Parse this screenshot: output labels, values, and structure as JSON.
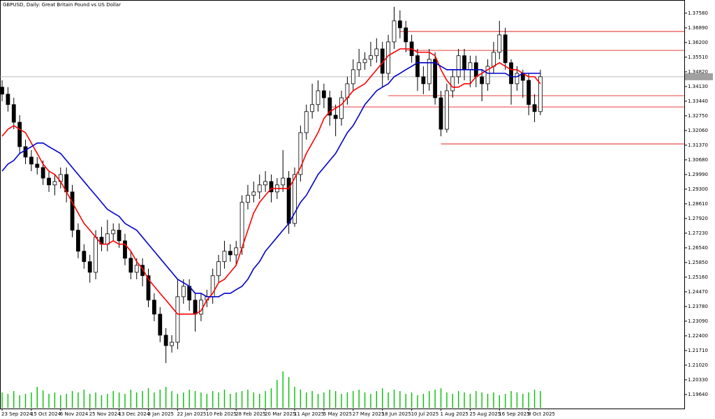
{
  "chart_data": {
    "type": "candlestick",
    "title": "GBPUSD, Daily:  Great Britain Pound vs US Dollar",
    "categories": [
      "23 Sep 2024",
      null,
      null,
      null,
      null,
      "15 Oct 2024",
      null,
      null,
      null,
      null,
      "6 Nov 2024",
      null,
      null,
      null,
      null,
      "25 Nov 2024",
      null,
      null,
      null,
      null,
      "13 Dec 2024",
      null,
      null,
      null,
      null,
      "3 Jan 2025",
      null,
      null,
      null,
      null,
      "22 Jan 2025",
      null,
      null,
      null,
      null,
      "10 Feb 2025",
      null,
      null,
      null,
      null,
      "28 Feb 2025",
      null,
      null,
      null,
      null,
      "20 Mar 2025",
      null,
      null,
      null,
      null,
      "11 Apr 2025",
      null,
      null,
      null,
      null,
      "5 May 2025",
      null,
      null,
      null,
      null,
      "27 May 2025",
      null,
      null,
      null,
      null,
      "18 Jun 2025",
      null,
      null,
      null,
      null,
      "10 Jul 2025",
      null,
      null,
      null,
      null,
      "1 Aug 2025",
      null,
      null,
      null,
      null,
      "25 Aug 2025",
      null,
      null,
      null,
      null,
      "16 Sep 2025",
      null,
      null,
      null,
      null,
      "8 Oct 2025",
      null,
      null
    ],
    "open": [
      1.341,
      1.3377,
      1.3328,
      1.3245,
      1.313,
      1.3081,
      1.3048,
      1.3032,
      1.2982,
      1.295,
      1.2966,
      1.2999,
      1.2917,
      1.2737,
      1.2638,
      1.2589,
      1.2539,
      1.2704,
      1.2671,
      1.272,
      1.2737,
      1.2687,
      1.2605,
      1.2539,
      1.2572,
      1.2523,
      1.2408,
      1.2342,
      1.2243,
      1.2194,
      1.221,
      1.2424,
      1.2473,
      1.2408,
      1.2342,
      1.2408,
      1.2424,
      1.2523,
      1.2589,
      1.2638,
      1.2621,
      1.2654,
      1.2868,
      1.2901,
      1.2917,
      1.295,
      1.2966,
      1.2917,
      1.295,
      1.2982,
      1.2769,
      1.2999,
      1.3196,
      1.3295,
      1.3328,
      1.3393,
      1.336,
      1.3278,
      1.3262,
      1.336,
      1.3426,
      1.3492,
      1.3525,
      1.3541,
      1.3558,
      1.359,
      1.3475,
      1.3623,
      1.3722,
      1.3689,
      1.3623,
      1.3558,
      1.3459,
      1.3426,
      1.3541,
      1.336,
      1.3212,
      1.3393,
      1.3459,
      1.3558,
      1.3492,
      1.3525,
      1.3459,
      1.3426,
      1.3508,
      1.3574,
      1.3656,
      1.3525,
      1.3426,
      1.3475,
      1.3442,
      1.3328,
      1.3295
    ],
    "high": [
      1.3442,
      1.341,
      1.336,
      1.3278,
      1.3163,
      1.3114,
      1.3081,
      1.3065,
      1.3015,
      1.2999,
      1.3032,
      1.3032,
      1.295,
      1.2769,
      1.2671,
      1.2621,
      1.2737,
      1.2753,
      1.2786,
      1.2769,
      1.2769,
      1.272,
      1.2638,
      1.2605,
      1.2605,
      1.2556,
      1.244,
      1.2375,
      1.2276,
      1.2243,
      1.2506,
      1.2506,
      1.2506,
      1.244,
      1.244,
      1.2457,
      1.2556,
      1.2621,
      1.2687,
      1.2671,
      1.2687,
      1.2901,
      1.295,
      1.2966,
      1.2999,
      1.3015,
      1.2999,
      1.2982,
      1.3114,
      1.3015,
      1.3032,
      1.3229,
      1.3328,
      1.3426,
      1.3442,
      1.3426,
      1.3393,
      1.3328,
      1.3393,
      1.3459,
      1.3541,
      1.359,
      1.3574,
      1.3623,
      1.364,
      1.3623,
      1.3656,
      1.3788,
      1.3771,
      1.3722,
      1.3656,
      1.359,
      1.3508,
      1.359,
      1.3574,
      1.3393,
      1.3426,
      1.3492,
      1.359,
      1.359,
      1.3558,
      1.3558,
      1.3492,
      1.3541,
      1.3623,
      1.3722,
      1.3689,
      1.3541,
      1.3508,
      1.3492,
      1.3475,
      1.3377,
      1.3492
    ],
    "low": [
      1.3344,
      1.3295,
      1.3212,
      1.3098,
      1.3048,
      1.3015,
      1.2999,
      1.295,
      1.2917,
      1.2901,
      1.2933,
      1.2868,
      1.2704,
      1.2605,
      1.2556,
      1.249,
      1.2506,
      1.2638,
      1.2638,
      1.2687,
      1.2654,
      1.2572,
      1.2506,
      1.2506,
      1.2473,
      1.2375,
      1.2309,
      1.221,
      1.2112,
      1.2161,
      1.2177,
      1.2391,
      1.2358,
      1.226,
      1.2309,
      1.2375,
      1.2391,
      1.249,
      1.2556,
      1.2589,
      1.2572,
      1.2621,
      1.2835,
      1.2868,
      1.2884,
      1.2917,
      1.2868,
      1.2884,
      1.2917,
      1.272,
      1.2753,
      1.2966,
      1.3163,
      1.3262,
      1.3295,
      1.3311,
      1.3229,
      1.3179,
      1.3229,
      1.3328,
      1.3393,
      1.3459,
      1.3492,
      1.3508,
      1.3525,
      1.341,
      1.3442,
      1.359,
      1.364,
      1.3574,
      1.3525,
      1.3393,
      1.3377,
      1.3393,
      1.3328,
      1.3179,
      1.3196,
      1.336,
      1.3426,
      1.3442,
      1.341,
      1.341,
      1.3344,
      1.3393,
      1.3475,
      1.3541,
      1.3492,
      1.3328,
      1.3393,
      1.336,
      1.3278,
      1.3245,
      1.3278
    ],
    "close": [
      1.3377,
      1.3328,
      1.3245,
      1.313,
      1.3081,
      1.3048,
      1.3032,
      1.2982,
      1.295,
      1.2966,
      1.2999,
      1.2917,
      1.2737,
      1.2638,
      1.2589,
      1.2539,
      1.2704,
      1.2671,
      1.272,
      1.2737,
      1.2687,
      1.2605,
      1.2539,
      1.2572,
      1.2523,
      1.2408,
      1.2342,
      1.2243,
      1.2194,
      1.221,
      1.2424,
      1.2473,
      1.2408,
      1.2342,
      1.2408,
      1.2424,
      1.2523,
      1.2589,
      1.2638,
      1.2621,
      1.2654,
      1.2868,
      1.2901,
      1.2917,
      1.295,
      1.2966,
      1.2917,
      1.295,
      1.2982,
      1.2769,
      1.2999,
      1.3196,
      1.3295,
      1.3328,
      1.3393,
      1.336,
      1.3278,
      1.3262,
      1.336,
      1.3426,
      1.3492,
      1.3525,
      1.3541,
      1.3558,
      1.359,
      1.3475,
      1.3623,
      1.3722,
      1.3689,
      1.3623,
      1.3558,
      1.3459,
      1.3426,
      1.3541,
      1.336,
      1.3212,
      1.3393,
      1.3459,
      1.3558,
      1.3492,
      1.3525,
      1.3459,
      1.3426,
      1.3508,
      1.3574,
      1.3656,
      1.3525,
      1.3426,
      1.3475,
      1.3442,
      1.3328,
      1.3295,
      1.3459
    ],
    "up_color": "#ffffff",
    "down_color": "#000000",
    "candle_outline": "#000000",
    "moving_averages": [
      {
        "color": "#ff0000",
        "values": [
          1.3179,
          1.3212,
          1.3229,
          1.3212,
          1.3196,
          1.3147,
          1.3098,
          1.3048,
          1.3015,
          1.2999,
          1.2966,
          1.2917,
          1.2868,
          1.2818,
          1.2769,
          1.2737,
          1.2704,
          1.2671,
          1.2671,
          1.2687,
          1.2671,
          1.2671,
          1.2638,
          1.2589,
          1.2556,
          1.2506,
          1.2473,
          1.244,
          1.2408,
          1.2375,
          1.2342,
          1.2342,
          1.2342,
          1.2342,
          1.2358,
          1.2408,
          1.244,
          1.249,
          1.2506,
          1.2539,
          1.2572,
          1.2654,
          1.2737,
          1.2818,
          1.2868,
          1.2901,
          1.2933,
          1.2933,
          1.2933,
          1.2933,
          1.2982,
          1.3032,
          1.3098,
          1.3147,
          1.3196,
          1.3262,
          1.3295,
          1.3311,
          1.3328,
          1.336,
          1.3393,
          1.341,
          1.3426,
          1.3459,
          1.3492,
          1.3525,
          1.3558,
          1.3574,
          1.359,
          1.359,
          1.359,
          1.3574,
          1.3574,
          1.3574,
          1.3558,
          1.3492,
          1.3442,
          1.341,
          1.341,
          1.3426,
          1.3426,
          1.3459,
          1.3475,
          1.3492,
          1.3508,
          1.3525,
          1.3508,
          1.3492,
          1.3492,
          1.3475,
          1.3459,
          1.3459,
          1.3426
        ]
      },
      {
        "color": "#0000cc",
        "values": [
          1.3015,
          1.3048,
          1.3065,
          1.3098,
          1.3114,
          1.313,
          1.3147,
          1.3147,
          1.313,
          1.3114,
          1.3098,
          1.3065,
          1.3032,
          1.2999,
          1.2966,
          1.2933,
          1.2901,
          1.2868,
          1.2835,
          1.2818,
          1.2802,
          1.2769,
          1.2753,
          1.2737,
          1.2704,
          1.2671,
          1.2638,
          1.2605,
          1.2572,
          1.2539,
          1.2506,
          1.249,
          1.2473,
          1.244,
          1.244,
          1.2424,
          1.2424,
          1.2424,
          1.244,
          1.244,
          1.2457,
          1.2473,
          1.2506,
          1.2556,
          1.2589,
          1.2638,
          1.2671,
          1.2704,
          1.2737,
          1.2769,
          1.2818,
          1.2868,
          1.2901,
          1.295,
          1.2999,
          1.3032,
          1.3065,
          1.3098,
          1.3147,
          1.3196,
          1.3229,
          1.3278,
          1.3328,
          1.336,
          1.3393,
          1.341,
          1.3426,
          1.3459,
          1.3475,
          1.3492,
          1.3508,
          1.3525,
          1.3525,
          1.3525,
          1.3525,
          1.3508,
          1.3492,
          1.3492,
          1.3492,
          1.3492,
          1.3492,
          1.3492,
          1.3492,
          1.3475,
          1.3475,
          1.3475,
          1.3475,
          1.3459,
          1.3459,
          1.3475,
          1.3475,
          1.3475,
          1.3475
        ]
      }
    ],
    "volume": {
      "color": "#00c000",
      "values": [
        22,
        20,
        24,
        18,
        20,
        22,
        30,
        25,
        20,
        22,
        18,
        20,
        24,
        22,
        26,
        20,
        22,
        18,
        20,
        24,
        22,
        20,
        26,
        22,
        24,
        28,
        22,
        26,
        30,
        24,
        20,
        22,
        26,
        24,
        22,
        20,
        24,
        22,
        26,
        20,
        22,
        24,
        26,
        22,
        20,
        24,
        28,
        40,
        52,
        44,
        30,
        26,
        22,
        24,
        20,
        22,
        26,
        24,
        20,
        22,
        24,
        26,
        22,
        20,
        24,
        28,
        22,
        26,
        24,
        20,
        22,
        18,
        20,
        24,
        26,
        28,
        22,
        20,
        24,
        22,
        20,
        24,
        22,
        20,
        22,
        18,
        20,
        24,
        22,
        20,
        22,
        26,
        24
      ]
    },
    "levels": [
      {
        "price": 1.3672,
        "start": 68
      },
      {
        "price": 1.3583,
        "start": 69
      },
      {
        "price": 1.337,
        "start": 66
      },
      {
        "price": 1.3317,
        "start": 56
      },
      {
        "price": 1.3143,
        "start": 75
      }
    ],
    "level_color": "#e00000",
    "bid": 1.3459,
    "bid_color": "#a0a0a0",
    "ylim": [
      1.1898,
      1.382
    ],
    "yticks": [
      {
        "value": 1.3758,
        "label": "1.37580"
      },
      {
        "value": 1.3689,
        "label": "1.36890"
      },
      {
        "value": 1.362,
        "label": "1.36200"
      },
      {
        "value": 1.3551,
        "label": "1.35510"
      },
      {
        "value": 1.3482,
        "label": "1.34820"
      },
      {
        "value": 1.3413,
        "label": "1.34130"
      },
      {
        "value": 1.3344,
        "label": "1.33440"
      },
      {
        "value": 1.3275,
        "label": "1.32750"
      },
      {
        "value": 1.3206,
        "label": "1.32060"
      },
      {
        "value": 1.3137,
        "label": "1.31370"
      },
      {
        "value": 1.3068,
        "label": "1.30680"
      },
      {
        "value": 1.2999,
        "label": "1.29990"
      },
      {
        "value": 1.293,
        "label": "1.29300"
      },
      {
        "value": 1.2861,
        "label": "1.28610"
      },
      {
        "value": 1.2792,
        "label": "1.27920"
      },
      {
        "value": 1.2723,
        "label": "1.27230"
      },
      {
        "value": 1.2654,
        "label": "1.26540"
      },
      {
        "value": 1.2585,
        "label": "1.25850"
      },
      {
        "value": 1.2516,
        "label": "1.25160"
      },
      {
        "value": 1.2447,
        "label": "1.24470"
      },
      {
        "value": 1.2378,
        "label": "1.23780"
      },
      {
        "value": 1.2309,
        "label": "1.23090"
      },
      {
        "value": 1.224,
        "label": "1.22400"
      },
      {
        "value": 1.2171,
        "label": "1.21710"
      },
      {
        "value": 1.2102,
        "label": "1.21020"
      },
      {
        "value": 1.2033,
        "label": "1.20330"
      },
      {
        "value": 1.1964,
        "label": "1.19640"
      }
    ],
    "grid": false
  }
}
